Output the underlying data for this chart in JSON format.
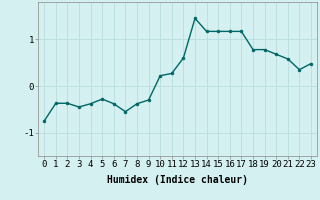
{
  "x": [
    0,
    1,
    2,
    3,
    4,
    5,
    6,
    7,
    8,
    9,
    10,
    11,
    12,
    13,
    14,
    15,
    16,
    17,
    18,
    19,
    20,
    21,
    22,
    23
  ],
  "y": [
    -0.75,
    -0.37,
    -0.37,
    -0.45,
    -0.38,
    -0.28,
    -0.38,
    -0.55,
    -0.38,
    -0.3,
    0.22,
    0.27,
    0.6,
    1.45,
    1.17,
    1.17,
    1.17,
    1.17,
    0.78,
    0.78,
    0.68,
    0.58,
    0.35,
    0.48
  ],
  "line_color": "#006666",
  "marker": "o",
  "marker_size": 2.0,
  "background_color": "#d4f0f0",
  "grid_color": "#b8dede",
  "xlabel": "Humidex (Indice chaleur)",
  "xlim": [
    -0.5,
    23.5
  ],
  "ylim": [
    -1.5,
    1.8
  ],
  "yticks": [
    -1,
    0,
    1
  ],
  "xticks": [
    0,
    1,
    2,
    3,
    4,
    5,
    6,
    7,
    8,
    9,
    10,
    11,
    12,
    13,
    14,
    15,
    16,
    17,
    18,
    19,
    20,
    21,
    22,
    23
  ],
  "xlabel_fontsize": 7,
  "tick_fontsize": 6.5,
  "line_width": 1.0
}
